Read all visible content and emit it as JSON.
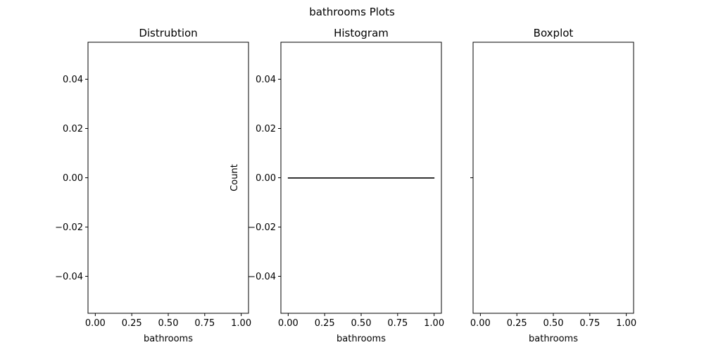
{
  "suptitle": "bathrooms Plots",
  "chart_data": [
    {
      "type": "line",
      "title": "Distrubtion",
      "xlabel": "bathrooms",
      "ylabel": "",
      "xlim": [
        -0.05,
        1.05
      ],
      "ylim": [
        -0.055,
        0.055
      ],
      "xticks": [
        0.0,
        0.25,
        0.5,
        0.75,
        1.0
      ],
      "xtick_labels": [
        "0.00",
        "0.25",
        "0.50",
        "0.75",
        "1.00"
      ],
      "yticks": [
        0.04,
        0.02,
        0.0,
        -0.02,
        -0.04
      ],
      "ytick_labels": [
        "0.04",
        "0.02",
        "0.00",
        "−0.02",
        "−0.04"
      ],
      "series": []
    },
    {
      "type": "bar",
      "title": "Histogram",
      "xlabel": "bathrooms",
      "ylabel": "Count",
      "xlim": [
        -0.05,
        1.05
      ],
      "ylim": [
        -0.055,
        0.055
      ],
      "xticks": [
        0.0,
        0.25,
        0.5,
        0.75,
        1.0
      ],
      "xtick_labels": [
        "0.00",
        "0.25",
        "0.50",
        "0.75",
        "1.00"
      ],
      "yticks": [
        0.04,
        0.02,
        0.0,
        -0.02,
        -0.04
      ],
      "ytick_labels": [
        "0.04",
        "0.02",
        "0.00",
        "−0.02",
        "−0.04"
      ],
      "bins": [
        {
          "x0": 0.0,
          "x1": 1.0,
          "count": 0
        }
      ]
    },
    {
      "type": "box",
      "title": "Boxplot",
      "xlabel": "bathrooms",
      "ylabel": "",
      "xlim": [
        -0.05,
        1.05
      ],
      "xticks": [
        0.0,
        0.25,
        0.5,
        0.75,
        1.0
      ],
      "xtick_labels": [
        "0.00",
        "0.25",
        "0.50",
        "0.75",
        "1.00"
      ],
      "yticks": [
        0
      ],
      "ytick_labels": [
        ""
      ],
      "boxes": []
    }
  ]
}
